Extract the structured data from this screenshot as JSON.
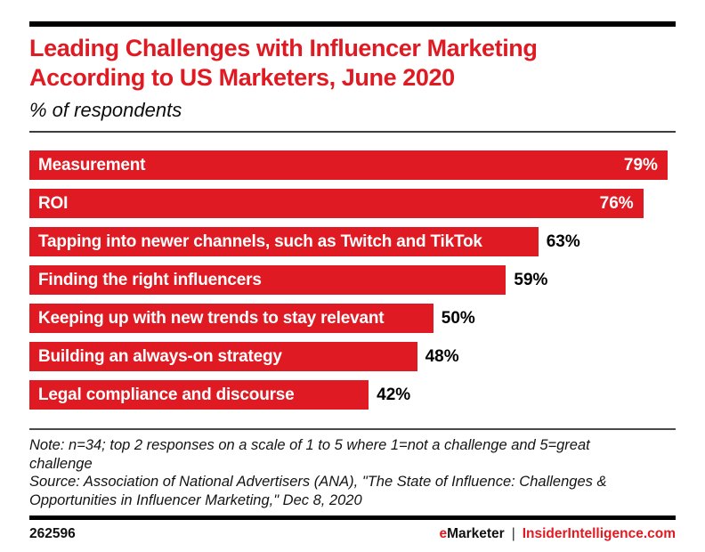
{
  "page": {
    "background": "#ffffff",
    "accent_red": "#e01a22",
    "ink": "#111111"
  },
  "header": {
    "title_line1": "Leading Challenges with Influencer Marketing",
    "title_line2": "According to US Marketers, June 2020",
    "subtitle": "% of respondents"
  },
  "chart_data": {
    "type": "bar",
    "orientation": "horizontal",
    "title": "Leading Challenges with Influencer Marketing According to US Marketers, June 2020",
    "subtitle": "% of respondents",
    "categories": [
      "Measurement",
      "ROI",
      "Tapping into newer channels, such as Twitch and TikTok",
      "Finding the right influencers",
      "Keeping up with new trends to stay relevant",
      "Building an always-on strategy",
      "Legal compliance and discourse"
    ],
    "values": [
      79,
      76,
      63,
      59,
      50,
      48,
      42
    ],
    "value_suffix": "%",
    "axis_max": 80,
    "bar_color": "#e01a22",
    "bar_label_color_inside": "#ffffff",
    "bar_label_color_outside": "#000000",
    "inside_label_min_value": 70,
    "grid": false,
    "legend": false
  },
  "notes": {
    "note_text": "Note: n=34; top 2 responses on a scale of 1 to 5 where 1=not a challenge and 5=great challenge",
    "source_text": "Source: Association of National Advertisers (ANA), \"The State of Influence: Challenges & Opportunities in Influencer Marketing,\" Dec 8, 2020"
  },
  "footer": {
    "chart_id": "262596",
    "brand_e": "e",
    "brand_rest": "Marketer",
    "separator": "|",
    "site": "InsiderIntelligence.com"
  }
}
